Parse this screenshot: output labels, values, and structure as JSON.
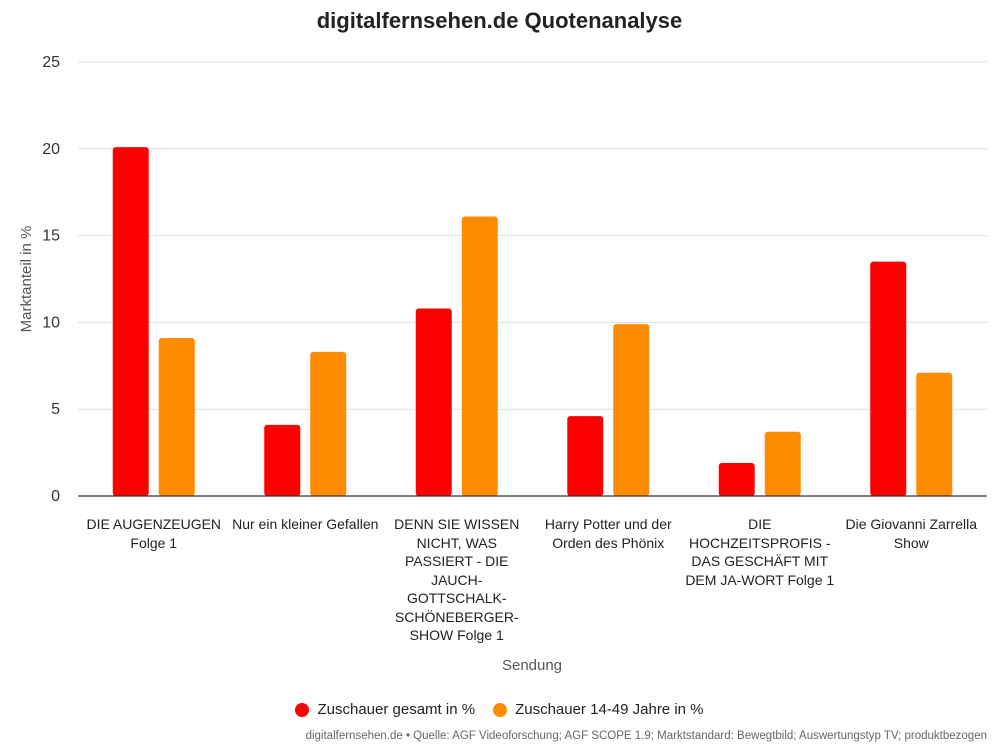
{
  "chart_data": {
    "type": "bar",
    "title": "digitalfernsehen.de Quotenanalyse",
    "xlabel": "Sendung",
    "ylabel": "Marktanteil in %",
    "ylim": [
      0,
      25
    ],
    "yticks": [
      0,
      5,
      10,
      15,
      20,
      25
    ],
    "grid": true,
    "legend_position": "bottom",
    "categories": [
      "DIE AUGENZEUGEN Folge 1",
      "Nur ein kleiner Gefallen",
      "DENN SIE WISSEN NICHT, WAS PASSIERT - DIE JAUCH-GOTTSCHALK-SCHÖNEBERGER-SHOW Folge 1",
      "Harry Potter und der Orden des Phönix",
      "DIE HOCHZEITSPROFIS - DAS GESCHÄFT MIT DEM JA-WORT Folge 1",
      "Die Giovanni Zarrella Show"
    ],
    "series": [
      {
        "name": "Zuschauer gesamt in %",
        "color": "#ff0000",
        "values": [
          20.1,
          4.1,
          10.8,
          4.6,
          1.9,
          13.5
        ]
      },
      {
        "name": "Zuschauer 14-49 Jahre in %",
        "color": "#ff8c00",
        "values": [
          9.1,
          8.3,
          16.1,
          9.9,
          3.7,
          7.1
        ]
      }
    ],
    "source": "digitalfernsehen.de • Quelle: AGF Videoforschung; AGF SCOPE 1.9; Marktstandard: Bewegtbild; Auswertungstyp TV; produktbezogen"
  }
}
